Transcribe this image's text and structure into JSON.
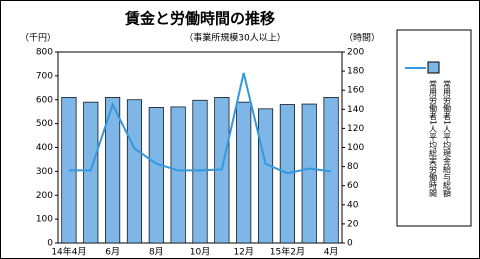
{
  "chart_data": {
    "type": "bar",
    "title": "賃金と労働時間の推移",
    "subtitle": "（事業所規模30人以上）",
    "y_label": "（千円）",
    "y2_label": "（時間）",
    "categories": [
      "14年4月",
      null,
      "6月",
      null,
      "8月",
      null,
      "10月",
      null,
      "12月",
      null,
      "15年2月",
      null,
      "4月"
    ],
    "series": [
      {
        "name": "常用労働者1人平均現金給与総額",
        "type": "bar",
        "color": "#7fb6e8",
        "values": [
          610,
          590,
          610,
          600,
          568,
          570,
          598,
          610,
          590,
          562,
          580,
          582,
          610
        ]
      },
      {
        "name": "常用労働者1人平均総実労働時間",
        "type": "line",
        "axis": "y2",
        "color": "#3399dd",
        "values": [
          76,
          76,
          145,
          99,
          83,
          76,
          76,
          77,
          178,
          83,
          73,
          78,
          75
        ]
      }
    ],
    "ylim": [
      0,
      800
    ],
    "yticks": [
      0,
      100,
      200,
      300,
      400,
      500,
      600,
      700,
      800
    ],
    "y2lim": [
      0,
      200
    ],
    "y2ticks": [
      0,
      20,
      40,
      60,
      80,
      100,
      120,
      140,
      160,
      180,
      200
    ]
  }
}
